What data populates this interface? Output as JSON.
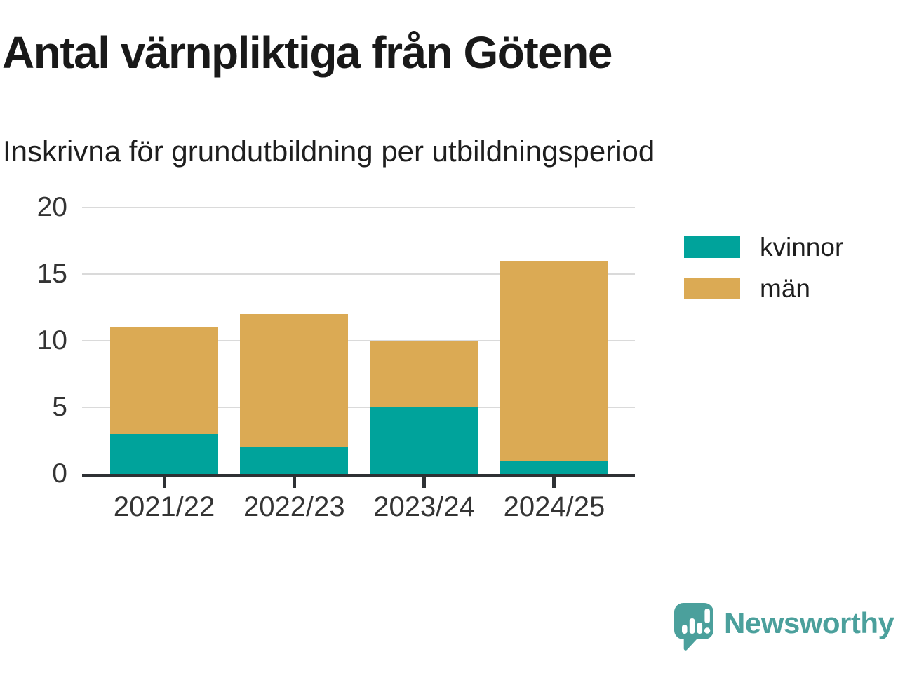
{
  "title": "Antal värnpliktiga från Götene",
  "subtitle": "Inskrivna för grundutbildning per utbildningsperiod",
  "chart_data": {
    "type": "bar",
    "stacked": true,
    "title": "Antal värnpliktiga från Götene",
    "subtitle": "Inskrivna för grundutbildning per utbildningsperiod",
    "categories": [
      "2021/22",
      "2022/23",
      "2023/24",
      "2024/25"
    ],
    "series": [
      {
        "name": "kvinnor",
        "color": "#00a39b",
        "values": [
          3,
          2,
          5,
          1
        ]
      },
      {
        "name": "män",
        "color": "#dbaa54",
        "values": [
          8,
          10,
          5,
          15
        ]
      }
    ],
    "totals": [
      11,
      12,
      10,
      16
    ],
    "xlabel": "",
    "ylabel": "",
    "ylim": [
      0,
      20
    ],
    "yticks": [
      0,
      5,
      10,
      15,
      20
    ],
    "grid": "horizontal",
    "grid_color": "#dadada",
    "axis_color": "#2e3134",
    "legend_position": "right"
  },
  "branding": {
    "logo_text": "Newsworthy",
    "logo_color": "#4ba09c",
    "logo_icon": "newsworthy-speech-bubble-chart-icon"
  }
}
